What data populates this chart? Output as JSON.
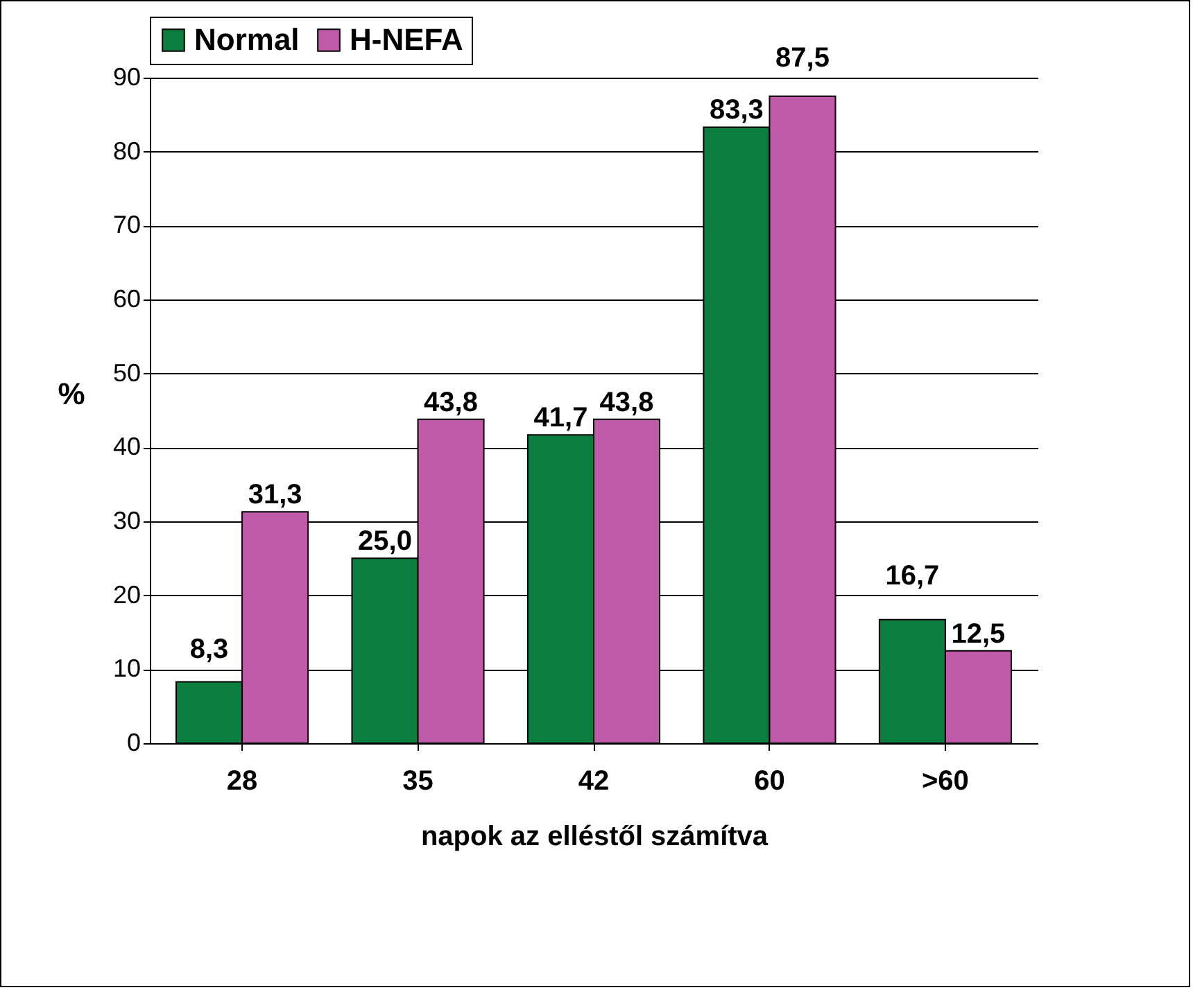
{
  "chart_data": {
    "type": "bar",
    "xlabel": "napok az elléstől számítva",
    "ylabel": "%",
    "categories": [
      "28",
      "35",
      "42",
      "60",
      ">60"
    ],
    "series": [
      {
        "name": "Normal",
        "color": "#0b7d3e",
        "values": [
          8.3,
          25.0,
          41.7,
          83.3,
          16.7
        ],
        "value_labels": [
          "8,3",
          "25,0",
          "41,7",
          "83,3",
          "16,7"
        ]
      },
      {
        "name": "H-NEFA",
        "color": "#bf5aa8",
        "values": [
          31.3,
          43.8,
          43.8,
          87.5,
          12.5
        ],
        "value_labels": [
          "31,3",
          "43,8",
          "43,8",
          "87,5",
          "12,5"
        ]
      }
    ],
    "ylim": [
      0,
      90
    ],
    "yticks": [
      0,
      10,
      20,
      30,
      40,
      50,
      60,
      70,
      80,
      90
    ],
    "grid": "y",
    "legend": "top"
  }
}
